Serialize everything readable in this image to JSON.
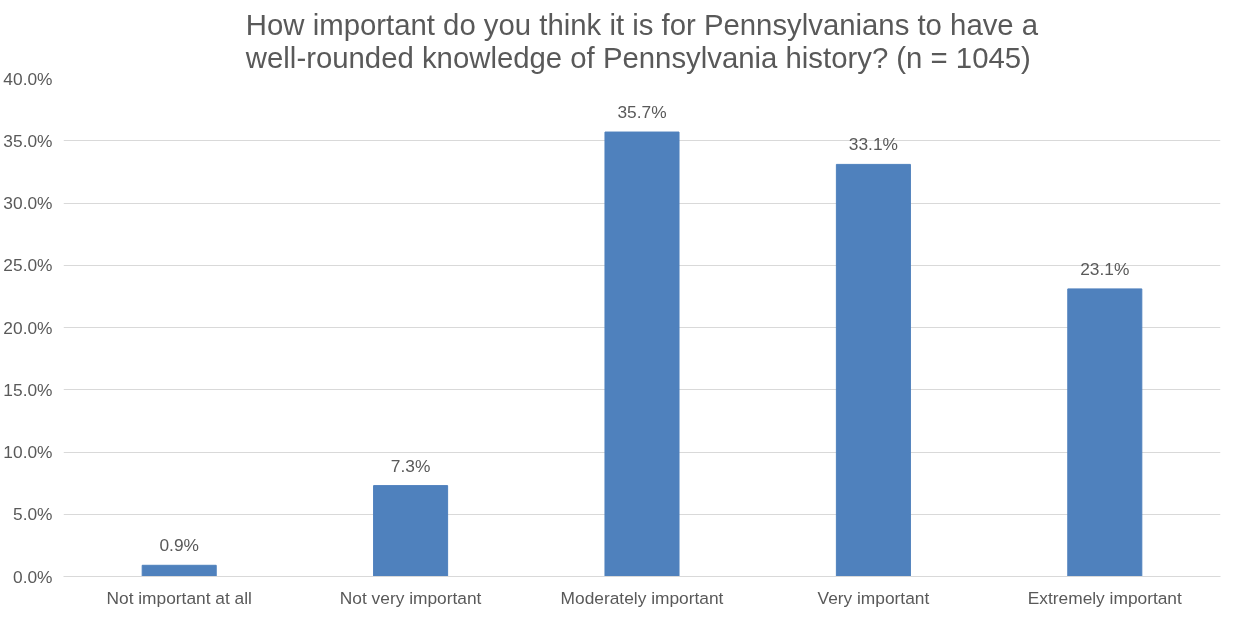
{
  "chart_data": {
    "type": "bar",
    "title": "How important do you think it is for Pennsylvanians to have a well-rounded knowledge of Pennsylvania history? (n = 1045)",
    "categories": [
      "Not important at all",
      "Not very important",
      "Moderately important",
      "Very important",
      "Extremely important"
    ],
    "values": [
      0.9,
      7.3,
      35.7,
      33.1,
      23.1
    ],
    "value_labels": [
      "0.9%",
      "7.3%",
      "35.7%",
      "33.1%",
      "23.1%"
    ],
    "color": "#4f81bd",
    "ylim": [
      0,
      40
    ],
    "yticks": [
      {
        "value": 0,
        "label": "0.0%"
      },
      {
        "value": 5,
        "label": "5.0%"
      },
      {
        "value": 10,
        "label": "10.0%"
      },
      {
        "value": 15,
        "label": "15.0%"
      },
      {
        "value": 20,
        "label": "20.0%"
      },
      {
        "value": 25,
        "label": "25.0%"
      },
      {
        "value": 30,
        "label": "30.0%"
      },
      {
        "value": 35,
        "label": "35.0%"
      },
      {
        "value": 40,
        "label": "40.0%"
      }
    ],
    "grid": "y"
  }
}
